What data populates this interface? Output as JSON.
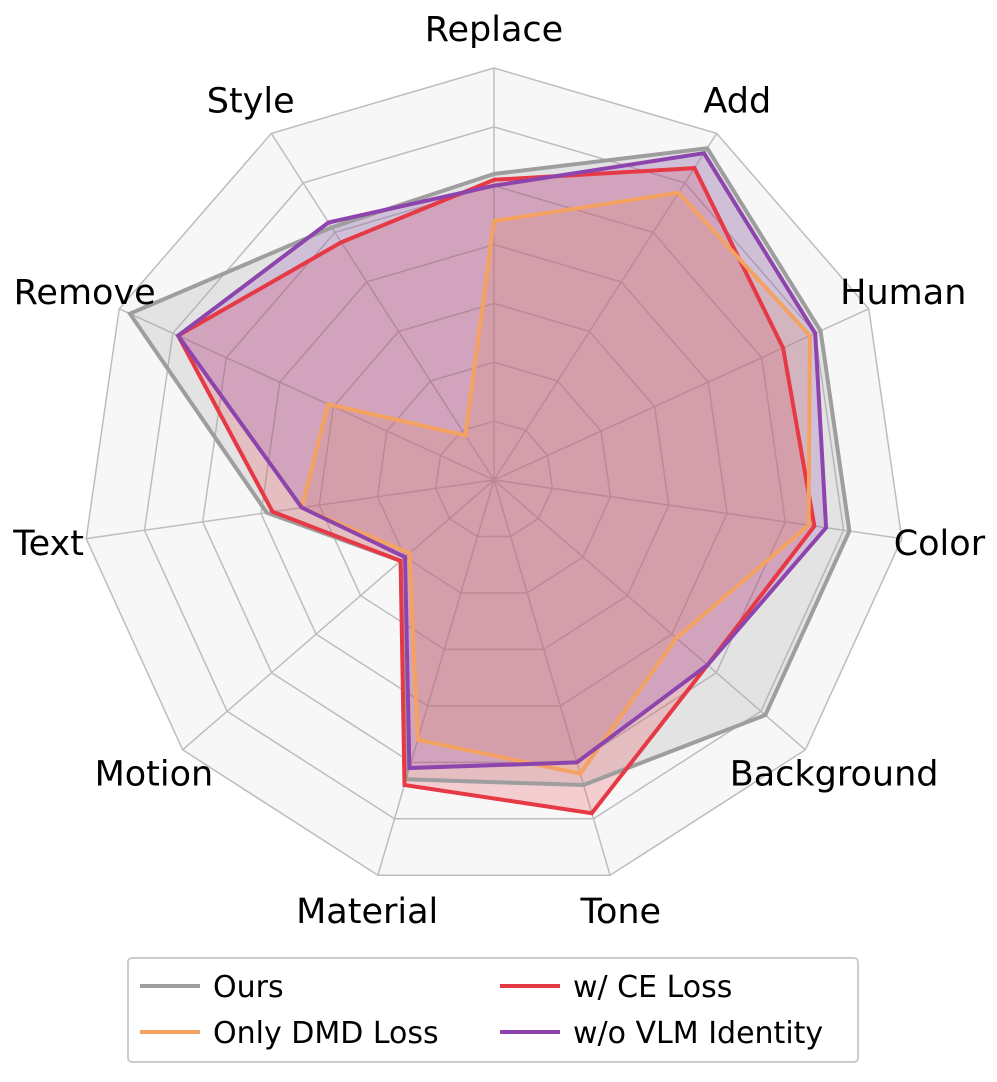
{
  "chart_data": {
    "type": "radar",
    "title": "",
    "categories": [
      "Replace",
      "Add",
      "Human",
      "Color",
      "Background",
      "Tone",
      "Material",
      "Motion",
      "Text",
      "Remove",
      "Style"
    ],
    "rlim": [
      0,
      7
    ],
    "grid": true,
    "legend_position": "bottom",
    "series": [
      {
        "name": "Ours",
        "color": "#9e9e9e",
        "values": [
          5.2,
          6.7,
          6.1,
          6.1,
          6.1,
          5.4,
          5.3,
          2.1,
          3.9,
          6.8,
          5.1
        ]
      },
      {
        "name": "w/ CE Loss",
        "color": "#e63946",
        "values": [
          5.1,
          6.3,
          5.4,
          5.5,
          4.8,
          5.9,
          5.4,
          2.1,
          3.8,
          5.9,
          4.8
        ]
      },
      {
        "name": "Only DMD Loss",
        "color": "#f4a261",
        "values": [
          4.4,
          5.8,
          5.9,
          5.4,
          4.1,
          5.2,
          4.6,
          1.9,
          3.3,
          3.1,
          0.9
        ]
      },
      {
        "name": "w/o VLM Identity",
        "color": "#8e44ad",
        "values": [
          5.0,
          6.6,
          6.0,
          5.7,
          4.8,
          5.0,
          5.1,
          2.0,
          3.3,
          5.9,
          5.2
        ]
      }
    ]
  },
  "legend": {
    "items": [
      {
        "label": "Ours",
        "color": "#9e9e9e"
      },
      {
        "label": "w/ CE Loss",
        "color": "#e63946"
      },
      {
        "label": "Only DMD Loss",
        "color": "#f4a261"
      },
      {
        "label": "w/o VLM Identity",
        "color": "#8e44ad"
      }
    ]
  }
}
